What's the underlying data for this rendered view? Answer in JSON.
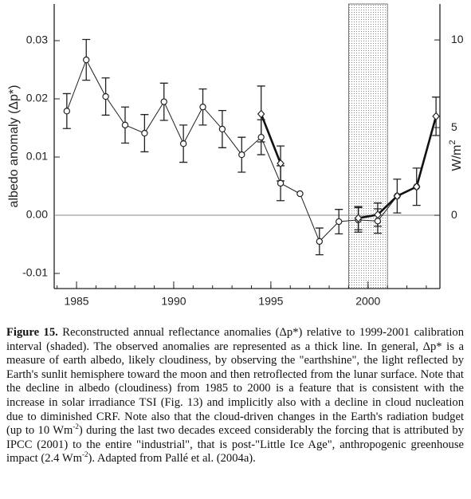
{
  "chart_data": {
    "type": "errorline",
    "ylabel": "albedo anomaly (Δp*)",
    "y2label": {
      "text": "W/m",
      "sup": "2"
    },
    "x": [
      1984.5,
      1985.5,
      1986.5,
      1987.5,
      1988.5,
      1989.5,
      1990.5,
      1991.5,
      1992.5,
      1993.5,
      1994.5,
      1995.5,
      1996.5,
      1997.5,
      1998.5,
      1999.5,
      2000.5,
      2001.5,
      2002.5,
      2003.5
    ],
    "series": [
      {
        "color": "#222",
        "width": 1,
        "marker": "circle",
        "values": [
          0.0179,
          0.0267,
          0.0204,
          0.0155,
          0.0141,
          0.0195,
          0.0123,
          0.0186,
          0.0148,
          0.0104,
          0.0134,
          0.0055,
          0.0037,
          -0.0045,
          -0.0011,
          -0.0008,
          -0.001,
          0.0033,
          0.0049,
          null
        ],
        "errors": [
          0.003,
          0.0035,
          0.0032,
          0.0031,
          0.0032,
          0.0032,
          0.0032,
          0.0031,
          0.0032,
          0.003,
          0.003,
          0.003,
          null,
          0.0023,
          0.0021,
          0.0021,
          0.0021,
          0.0029,
          0.0032,
          null
        ]
      },
      {
        "color": "#111",
        "width": 2.6,
        "marker": "diamond",
        "values": [
          null,
          null,
          null,
          null,
          null,
          null,
          null,
          null,
          null,
          null,
          0.0174,
          0.0089,
          null,
          null,
          null,
          -0.0005,
          0.0001,
          0.0033,
          0.0049,
          0.017
        ],
        "errors": [
          null,
          null,
          null,
          null,
          null,
          null,
          null,
          null,
          null,
          null,
          0.0048,
          0.003,
          null,
          null,
          null,
          0.002,
          0.002,
          null,
          null,
          0.0033
        ]
      }
    ],
    "xlim": [
      1983.85,
      2003.7
    ],
    "xticks": [
      1985,
      1990,
      1995,
      2000
    ],
    "xticks_minor": [
      1984,
      1985,
      1986,
      1987,
      1988,
      1989,
      1990,
      1991,
      1992,
      1993,
      1994,
      1995,
      1996,
      1997,
      1998,
      1999,
      2000,
      2001,
      2002,
      2003
    ],
    "ylim": [
      -0.0126,
      0.0363
    ],
    "yticks": [
      -0.01,
      {
        "value": 0,
        "label": "0.00"
      },
      0.01,
      0.02,
      0.03
    ],
    "y2lim": [
      -4.18,
      12.05
    ],
    "y2ticks": [
      0,
      5,
      10
    ],
    "shade": [
      1999,
      2001
    ]
  },
  "caption": {
    "parts": [
      {
        "bold": "Figure 15."
      },
      {
        "text": " Reconstructed annual reflectance anomalies (Δp*) relative to 1999-2001 calibration interval (shaded). The observed anomalies are represented as a thick line. In general, Δp* is a measure of earth albedo, likely cloudiness, by observing the \"earthshine\", the light reflected by Earth's sunlit hemisphere toward the moon and then retroflected from the lunar surface. Note that the decline in albedo (cloudiness) from 1985 to 2000 is a feature that is consistent with the increase in solar irradiance TSI (Fig. 13) and implicitly also with a decline in cloud nucleation due to diminished CRF. Note also that the cloud-driven changes in the Earth's radiation budget (up to 10 Wm"
      },
      {
        "sup": "-2"
      },
      {
        "text": ") during the last two decades exceed considerably the forcing that is attributed by IPCC (2001) to the entire \"industrial\", that is post-\"Little Ice Age\", anthropogenic greenhouse impact (2.4 Wm"
      },
      {
        "sup": "-2"
      },
      {
        "text": "). Adapted from Pallé et al. (2004a)."
      }
    ]
  }
}
